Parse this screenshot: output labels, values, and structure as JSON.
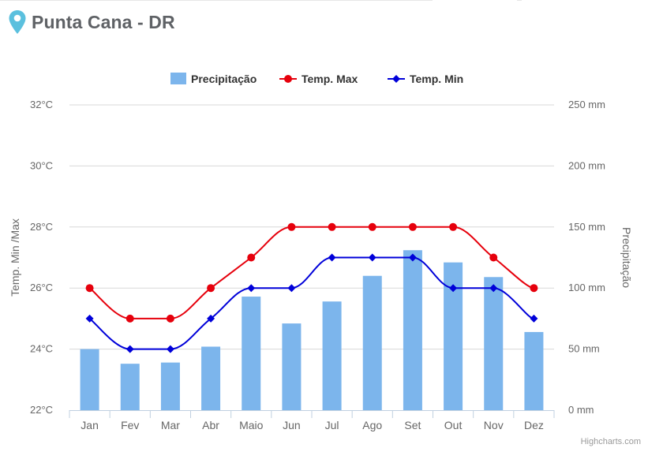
{
  "page": {
    "title": "Punta Cana - DR",
    "location_icon": "map-pin-icon",
    "credit": "Highcharts.com"
  },
  "colors": {
    "precip": "#7cb5ec",
    "tmax": "#e6000c",
    "tmin": "#0000d9",
    "grid": "#d8d8d8",
    "axis_text": "#666666",
    "pin": "#5bc0de"
  },
  "chart_data": {
    "type": "bar",
    "categories": [
      "Jan",
      "Fev",
      "Mar",
      "Abr",
      "Maio",
      "Jun",
      "Jul",
      "Ago",
      "Set",
      "Out",
      "Nov",
      "Dez"
    ],
    "legend": [
      "Precipitação",
      "Temp. Max",
      "Temp. Min"
    ],
    "legend_position": "top-center",
    "grid": true,
    "series": [
      {
        "name": "Precipitação",
        "type": "bar",
        "axis": "right",
        "values": [
          50,
          38,
          39,
          52,
          93,
          71,
          89,
          110,
          131,
          121,
          109,
          64
        ]
      },
      {
        "name": "Temp. Max",
        "type": "line",
        "axis": "left",
        "marker": "circle",
        "values": [
          26,
          25,
          25,
          26,
          27,
          28,
          28,
          28,
          28,
          28,
          27,
          26
        ]
      },
      {
        "name": "Temp. Min",
        "type": "line",
        "axis": "left",
        "marker": "diamond",
        "values": [
          25,
          24,
          24,
          25,
          26,
          26,
          27,
          27,
          27,
          26,
          26,
          25
        ]
      }
    ],
    "y_left": {
      "label": "Temp. Min /Max",
      "range": [
        22,
        32
      ],
      "ticks": [
        "22°C",
        "24°C",
        "26°C",
        "28°C",
        "30°C",
        "32°C"
      ]
    },
    "y_right": {
      "label": "Precipitação",
      "range": [
        0,
        250
      ],
      "ticks": [
        "0 mm",
        "50 mm",
        "100 mm",
        "150 mm",
        "200 mm",
        "250 mm"
      ]
    }
  }
}
